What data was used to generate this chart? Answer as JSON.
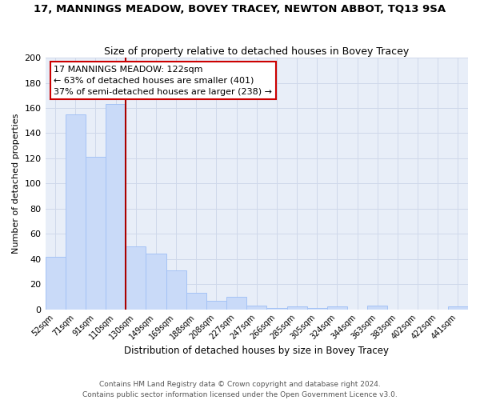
{
  "title": "17, MANNINGS MEADOW, BOVEY TRACEY, NEWTON ABBOT, TQ13 9SA",
  "subtitle": "Size of property relative to detached houses in Bovey Tracey",
  "xlabel": "Distribution of detached houses by size in Bovey Tracey",
  "ylabel": "Number of detached properties",
  "categories": [
    "52sqm",
    "71sqm",
    "91sqm",
    "110sqm",
    "130sqm",
    "149sqm",
    "169sqm",
    "188sqm",
    "208sqm",
    "227sqm",
    "247sqm",
    "266sqm",
    "285sqm",
    "305sqm",
    "324sqm",
    "344sqm",
    "363sqm",
    "383sqm",
    "402sqm",
    "422sqm",
    "441sqm"
  ],
  "values": [
    42,
    155,
    121,
    163,
    50,
    44,
    31,
    13,
    7,
    10,
    3,
    1,
    2,
    1,
    2,
    0,
    3,
    0,
    0,
    0,
    2
  ],
  "bar_color": "#c9daf8",
  "bar_edge_color": "#a4c2f4",
  "grid_color": "#cfd8ea",
  "background_color": "#ffffff",
  "plot_bg_color": "#e8eef8",
  "ylim": [
    0,
    200
  ],
  "yticks": [
    0,
    20,
    40,
    60,
    80,
    100,
    120,
    140,
    160,
    180,
    200
  ],
  "annotation_text_line1": "17 MANNINGS MEADOW: 122sqm",
  "annotation_text_line2": "← 63% of detached houses are smaller (401)",
  "annotation_text_line3": "37% of semi-detached houses are larger (238) →",
  "annotation_box_color": "#ffffff",
  "annotation_border_color": "#cc0000",
  "redline_color": "#aa0000",
  "footer_line1": "Contains HM Land Registry data © Crown copyright and database right 2024.",
  "footer_line2": "Contains public sector information licensed under the Open Government Licence v3.0."
}
